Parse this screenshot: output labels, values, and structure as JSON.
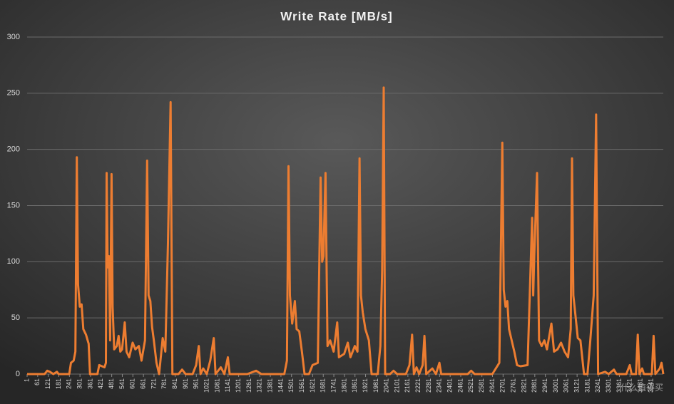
{
  "chart_data": {
    "type": "line",
    "title": "Write Rate [MB/s]",
    "color": "#ed7d31",
    "grid": true,
    "xlim": [
      1,
      3610
    ],
    "ylim": [
      0,
      300
    ],
    "yticks": [
      0,
      50,
      100,
      150,
      200,
      250,
      300
    ],
    "xticks": [
      1,
      61,
      121,
      181,
      241,
      301,
      361,
      421,
      481,
      541,
      601,
      661,
      721,
      781,
      841,
      901,
      961,
      1021,
      1081,
      1141,
      1201,
      1261,
      1321,
      1381,
      1441,
      1501,
      1561,
      1621,
      1681,
      1741,
      1801,
      1861,
      1921,
      1981,
      2041,
      2101,
      2161,
      2221,
      2281,
      2341,
      2401,
      2461,
      2521,
      2581,
      2641,
      2701,
      2761,
      2821,
      2881,
      2941,
      3001,
      3061,
      3121,
      3181,
      3241,
      3301,
      3361,
      3421,
      3481,
      3541
    ],
    "x": [
      1,
      100,
      115,
      130,
      150,
      170,
      180,
      240,
      250,
      265,
      275,
      283,
      290,
      300,
      310,
      320,
      335,
      350,
      358,
      400,
      410,
      440,
      448,
      452,
      458,
      465,
      472,
      480,
      486,
      495,
      510,
      520,
      530,
      540,
      555,
      565,
      580,
      600,
      615,
      635,
      650,
      670,
      682,
      690,
      700,
      710,
      720,
      735,
      750,
      770,
      785,
      800,
      815,
      825,
      860,
      880,
      900,
      940,
      960,
      975,
      985,
      1000,
      1020,
      1040,
      1060,
      1070,
      1100,
      1120,
      1140,
      1150,
      1200,
      1250,
      1300,
      1330,
      1380,
      1420,
      1460,
      1475,
      1484,
      1492,
      1505,
      1520,
      1530,
      1545,
      1560,
      1575,
      1600,
      1620,
      1650,
      1666,
      1675,
      1682,
      1694,
      1705,
      1720,
      1740,
      1760,
      1770,
      1800,
      1820,
      1835,
      1860,
      1875,
      1887,
      1895,
      1905,
      1920,
      1940,
      1955,
      1990,
      2005,
      2015,
      2024,
      2032,
      2060,
      2080,
      2100,
      2150,
      2170,
      2185,
      2195,
      2210,
      2225,
      2245,
      2255,
      2265,
      2300,
      2320,
      2340,
      2350,
      2400,
      2500,
      2520,
      2540,
      2600,
      2640,
      2680,
      2697,
      2705,
      2715,
      2725,
      2735,
      2750,
      2765,
      2780,
      2800,
      2840,
      2866,
      2872,
      2878,
      2894,
      2905,
      2920,
      2935,
      2950,
      2975,
      2990,
      3010,
      3030,
      3050,
      3070,
      3085,
      3092,
      3100,
      3110,
      3125,
      3140,
      3160,
      3180,
      3195,
      3215,
      3229,
      3240,
      3280,
      3300,
      3330,
      3345,
      3400,
      3420,
      3430,
      3455,
      3465,
      3475,
      3490,
      3500,
      3545,
      3555,
      3565,
      3590,
      3600,
      3610
    ],
    "values": [
      0,
      0,
      3,
      2,
      0,
      2,
      0,
      0,
      10,
      12,
      20,
      193,
      80,
      60,
      62,
      40,
      35,
      27,
      0,
      0,
      8,
      6,
      10,
      179,
      95,
      105,
      30,
      178,
      60,
      22,
      25,
      34,
      20,
      22,
      46,
      20,
      15,
      28,
      22,
      25,
      12,
      30,
      190,
      70,
      65,
      42,
      30,
      10,
      0,
      32,
      20,
      117,
      242,
      0,
      0,
      4,
      0,
      0,
      8,
      25,
      0,
      5,
      0,
      12,
      32,
      0,
      6,
      0,
      15,
      0,
      0,
      0,
      3,
      0,
      0,
      0,
      0,
      12,
      185,
      70,
      45,
      65,
      40,
      38,
      20,
      0,
      0,
      8,
      10,
      175,
      100,
      105,
      179,
      25,
      30,
      20,
      46,
      15,
      18,
      28,
      15,
      25,
      20,
      192,
      70,
      55,
      40,
      30,
      0,
      0,
      25,
      92,
      255,
      0,
      0,
      3,
      0,
      0,
      8,
      35,
      0,
      6,
      0,
      8,
      34,
      0,
      5,
      0,
      10,
      0,
      0,
      0,
      3,
      0,
      0,
      0,
      10,
      206,
      75,
      60,
      65,
      40,
      30,
      20,
      8,
      7,
      8,
      139,
      70,
      106,
      179,
      30,
      25,
      30,
      22,
      45,
      20,
      22,
      28,
      20,
      15,
      40,
      192,
      70,
      55,
      32,
      30,
      0,
      0,
      28,
      70,
      231,
      0,
      2,
      0,
      4,
      0,
      0,
      8,
      0,
      0,
      35,
      0,
      5,
      0,
      0,
      34,
      0,
      5,
      10,
      0
    ],
    "watermark": "什么值得买"
  }
}
